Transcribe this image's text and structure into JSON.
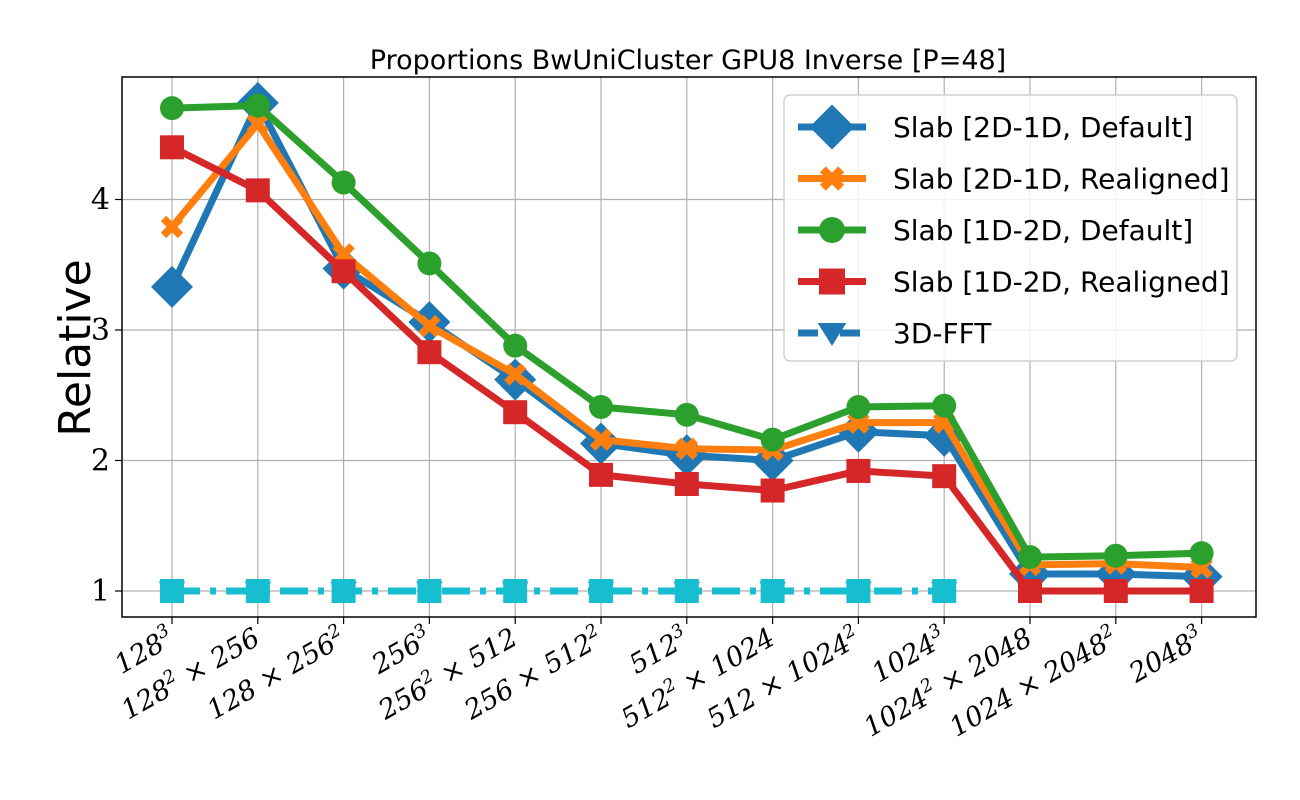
{
  "chart_data": {
    "type": "line",
    "title": "Proportions BwUniCluster GPU8 Inverse [P=48]",
    "xlabel": "",
    "ylabel": "Relative",
    "ylim": [
      0.8,
      4.95
    ],
    "yticks": [
      "1",
      "2",
      "3",
      "4"
    ],
    "grid": true,
    "legend_position": "top-right",
    "categories": [
      {
        "base": "128",
        "sup": "3",
        "rest": ""
      },
      {
        "base": "128",
        "sup": "2",
        "rest": " × 256"
      },
      {
        "base": "128 × 256",
        "sup": "2",
        "rest": ""
      },
      {
        "base": "256",
        "sup": "3",
        "rest": ""
      },
      {
        "base": "256",
        "sup": "2",
        "rest": " × 512"
      },
      {
        "base": "256 × 512",
        "sup": "2",
        "rest": ""
      },
      {
        "base": "512",
        "sup": "3",
        "rest": ""
      },
      {
        "base": "512",
        "sup": "2",
        "rest": " × 1024"
      },
      {
        "base": "512 × 1024",
        "sup": "2",
        "rest": ""
      },
      {
        "base": "1024",
        "sup": "3",
        "rest": ""
      },
      {
        "base": "1024",
        "sup": "2",
        "rest": " × 2048"
      },
      {
        "base": "1024 × 2048",
        "sup": "2",
        "rest": ""
      },
      {
        "base": "2048",
        "sup": "3",
        "rest": ""
      }
    ],
    "series": [
      {
        "name": "Slab [2D-1D, Default]",
        "color": "#1f77b4",
        "marker": "diamond",
        "style": "solid",
        "values": [
          3.33,
          4.74,
          3.47,
          3.06,
          2.62,
          2.13,
          2.04,
          2.0,
          2.22,
          2.19,
          1.13,
          1.13,
          1.11
        ]
      },
      {
        "name": "Slab [2D-1D, Realigned]",
        "color": "#ff7f0e",
        "marker": "x",
        "style": "solid",
        "values": [
          3.79,
          4.58,
          3.58,
          3.03,
          2.66,
          2.16,
          2.09,
          2.08,
          2.29,
          2.29,
          1.2,
          1.21,
          1.18
        ]
      },
      {
        "name": "Slab [1D-2D, Default]",
        "color": "#2ca02c",
        "marker": "circle",
        "style": "solid",
        "values": [
          4.7,
          4.72,
          4.13,
          3.51,
          2.88,
          2.41,
          2.35,
          2.16,
          2.41,
          2.42,
          1.26,
          1.27,
          1.29
        ]
      },
      {
        "name": "Slab [1D-2D, Realigned]",
        "color": "#d62728",
        "marker": "square",
        "style": "solid",
        "values": [
          4.4,
          4.07,
          3.45,
          2.83,
          2.37,
          1.89,
          1.82,
          1.77,
          1.92,
          1.88,
          1.0,
          1.0,
          1.0
        ]
      },
      {
        "name": "3D-FFT",
        "color": "#1f77b4",
        "marker": "triangle-down",
        "style": "dashdot",
        "values": [
          1.0,
          1.0,
          1.0,
          1.0,
          1.0,
          1.0,
          1.0,
          1.0,
          1.0,
          1.0,
          null,
          null,
          null
        ]
      }
    ],
    "overlay": {
      "color": "#17becf",
      "marker": "square",
      "style": "dashdot",
      "values": [
        1.0,
        1.0,
        1.0,
        1.0,
        1.0,
        1.0,
        1.0,
        1.0,
        1.0,
        1.0,
        null,
        null,
        null
      ]
    }
  }
}
